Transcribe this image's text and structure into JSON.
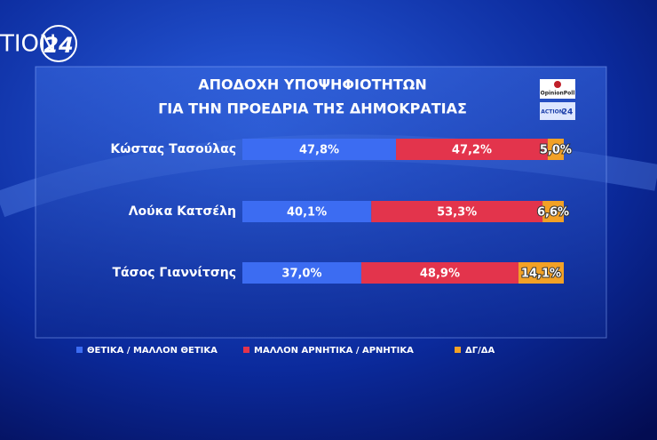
{
  "brand": {
    "channel": "TION",
    "channel_number": "24",
    "poll_logo": "OpinionPoll",
    "channel_logo_name": "ACTION",
    "channel_logo_number": "24"
  },
  "chart_data": {
    "type": "stacked-bar-horizontal",
    "title": "ΑΠΟΔΟΧΗ ΥΠΟΨΗΦΙΟΤΗΤΩΝ",
    "subtitle": "ΓΙΑ ΤΗΝ ΠΡΟΕΔΡΙΑ ΤΗΣ ΔΗΜΟΚΡΑΤΙΑΣ",
    "categories": [
      "Κώστας Τασούλας",
      "Λούκα Κατσέλη",
      "Τάσος Γιαννίτσης"
    ],
    "series": [
      {
        "name": "ΘΕΤΙΚΑ / ΜΑΛΛΟΝ ΘΕΤΙΚΑ",
        "color": "#3c6cf2",
        "values": [
          47.8,
          40.1,
          37.0
        ],
        "value_labels": [
          "47,8%",
          "40,1%",
          "37,0%"
        ]
      },
      {
        "name": "ΜΑΛΛΟΝ ΑΡΝΗΤΙΚΑ / ΑΡΝΗΤΙΚΑ",
        "color": "#e3344c",
        "values": [
          47.2,
          53.3,
          48.9
        ],
        "value_labels": [
          "47,2%",
          "53,3%",
          "48,9%"
        ]
      },
      {
        "name": "ΔΓ/ΔΑ",
        "color": "#f2a126",
        "values": [
          5.0,
          6.6,
          14.1
        ],
        "value_labels": [
          "5,0%",
          "6,6%",
          "14,1%"
        ]
      }
    ]
  }
}
